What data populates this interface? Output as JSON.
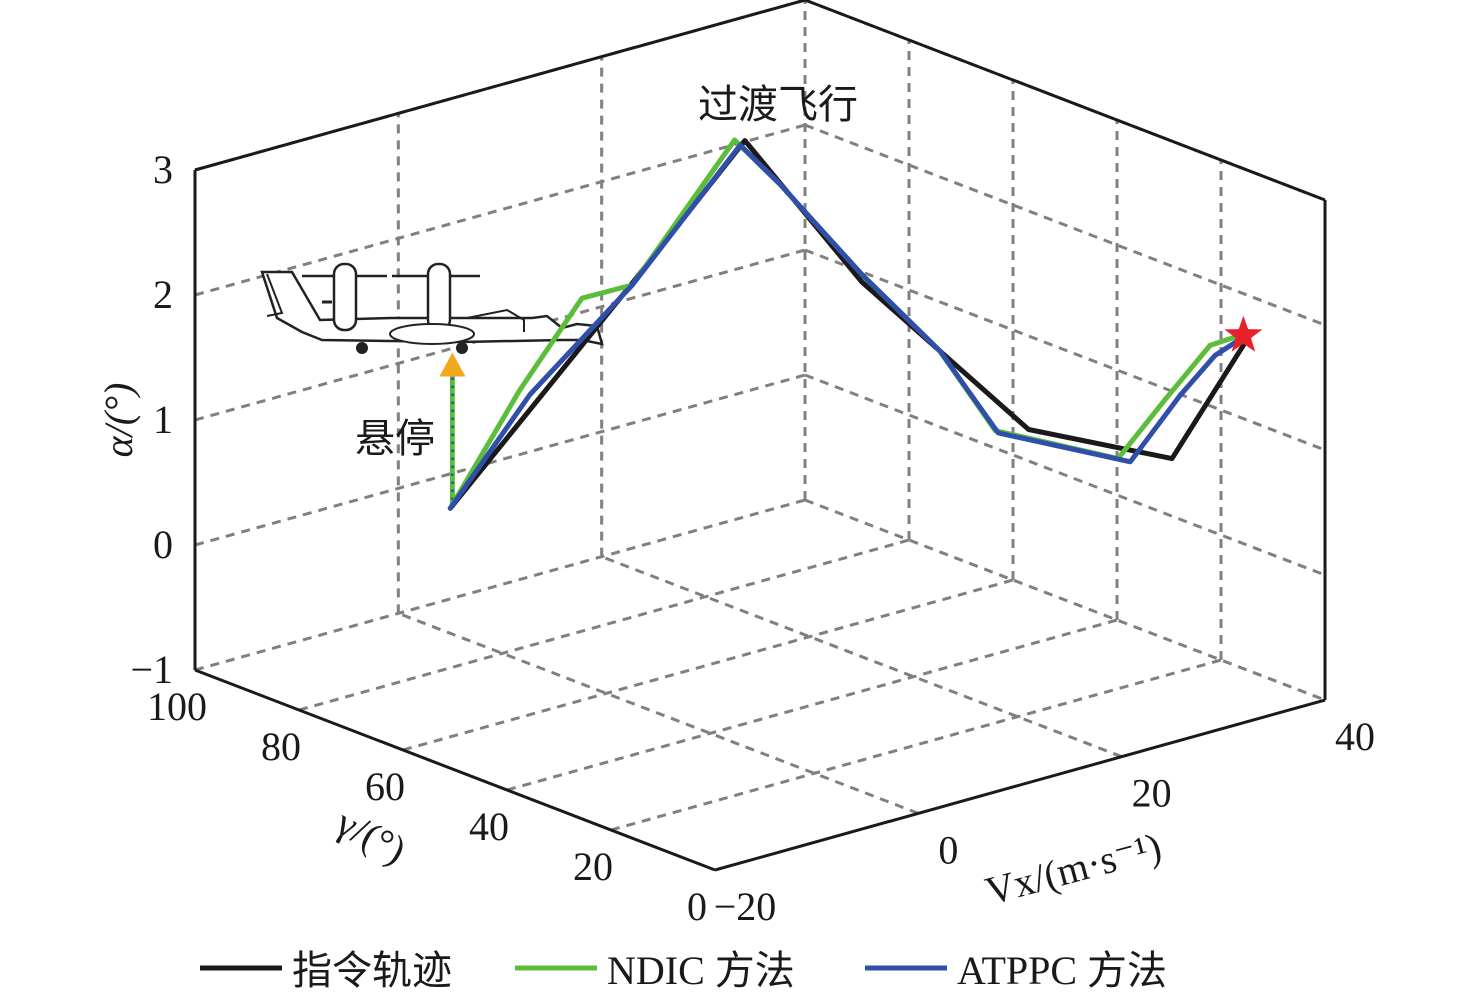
{
  "chart_data": {
    "type": "line3d",
    "title": "",
    "xlabel": "Vx/(m·s⁻¹)",
    "xlabel_main": "V",
    "xlabel_sub": "x",
    "xlabel_unit": "/(m·s",
    "xlabel_sup": "−1",
    "xlabel_close": ")",
    "ylabel": "γ/(°)",
    "zlabel": "α/(°)",
    "xlim": [
      -20,
      40
    ],
    "ylim": [
      0,
      100
    ],
    "zlim": [
      -1,
      3
    ],
    "xticks": [
      {
        "v": -20,
        "label": "−20"
      },
      {
        "v": 0,
        "label": "0"
      },
      {
        "v": 20,
        "label": "20"
      },
      {
        "v": 40,
        "label": "40"
      }
    ],
    "yticks": [
      {
        "v": 0,
        "label": "0"
      },
      {
        "v": 20,
        "label": "20"
      },
      {
        "v": 40,
        "label": "40"
      },
      {
        "v": 60,
        "label": "60"
      },
      {
        "v": 80,
        "label": "80"
      },
      {
        "v": 100,
        "label": "100"
      }
    ],
    "zticks": [
      {
        "v": -1,
        "label": "−1"
      },
      {
        "v": 0,
        "label": "0"
      },
      {
        "v": 1,
        "label": "1"
      },
      {
        "v": 2,
        "label": "2"
      },
      {
        "v": 3,
        "label": "3"
      }
    ],
    "grid": true,
    "legend_position": "bottom",
    "series": [
      {
        "name": "指令轨迹",
        "color": "#1a1a1a",
        "points": [
          [
            0,
            90,
            0
          ],
          [
            9.1,
            73.1,
            1.85
          ],
          [
            14.8,
            62.3,
            3.05
          ],
          [
            20.7,
            51.3,
            1.96
          ],
          [
            29.1,
            35.7,
            0.84
          ],
          [
            36.3,
            22.2,
            0.66
          ],
          [
            40.0,
            15.3,
            1.62
          ]
        ]
      },
      {
        "name": "NDIC 方法",
        "color": "#5cbd3a",
        "points": [
          [
            0,
            90,
            0
          ],
          [
            3.5,
            83.5,
            0.97
          ],
          [
            6.6,
            77.6,
            1.73
          ],
          [
            9.2,
            73.0,
            1.85
          ],
          [
            14.3,
            63.3,
            3.05
          ],
          [
            16.6,
            59.0,
            2.71
          ],
          [
            20.7,
            51.3,
            2.02
          ],
          [
            24.6,
            44.0,
            1.44
          ],
          [
            27.4,
            38.8,
            0.82
          ],
          [
            33.6,
            27.3,
            0.64
          ],
          [
            36.0,
            22.9,
            1.13
          ],
          [
            38.2,
            18.6,
            1.58
          ],
          [
            39.7,
            15.8,
            1.67
          ]
        ]
      },
      {
        "name": "ATPPC 方法",
        "color": "#2f4faa",
        "points": [
          [
            0,
            90,
            0
          ],
          [
            4.0,
            82.5,
            0.94
          ],
          [
            9.2,
            73.0,
            1.85
          ],
          [
            14.6,
            62.8,
            3.01
          ],
          [
            16.6,
            59.0,
            2.71
          ],
          [
            20.7,
            51.3,
            2.02
          ],
          [
            24.6,
            44.0,
            1.44
          ],
          [
            27.6,
            38.6,
            0.8
          ],
          [
            34.2,
            26.1,
            0.62
          ],
          [
            36.7,
            21.4,
            1.17
          ],
          [
            38.5,
            18.2,
            1.5
          ],
          [
            39.8,
            15.6,
            1.65
          ]
        ]
      }
    ],
    "annotations": {
      "transition": "过渡飞行",
      "hover": "悬停",
      "hover_segment": {
        "vx": 0.2,
        "gamma": 90,
        "alpha_from": 0,
        "alpha_to": 1.05
      },
      "end_marker": {
        "vx": 39.9,
        "gamma": 15.5,
        "alpha": 1.67,
        "color": "#e8202a"
      },
      "arrow_color": "#f0a91e"
    }
  }
}
